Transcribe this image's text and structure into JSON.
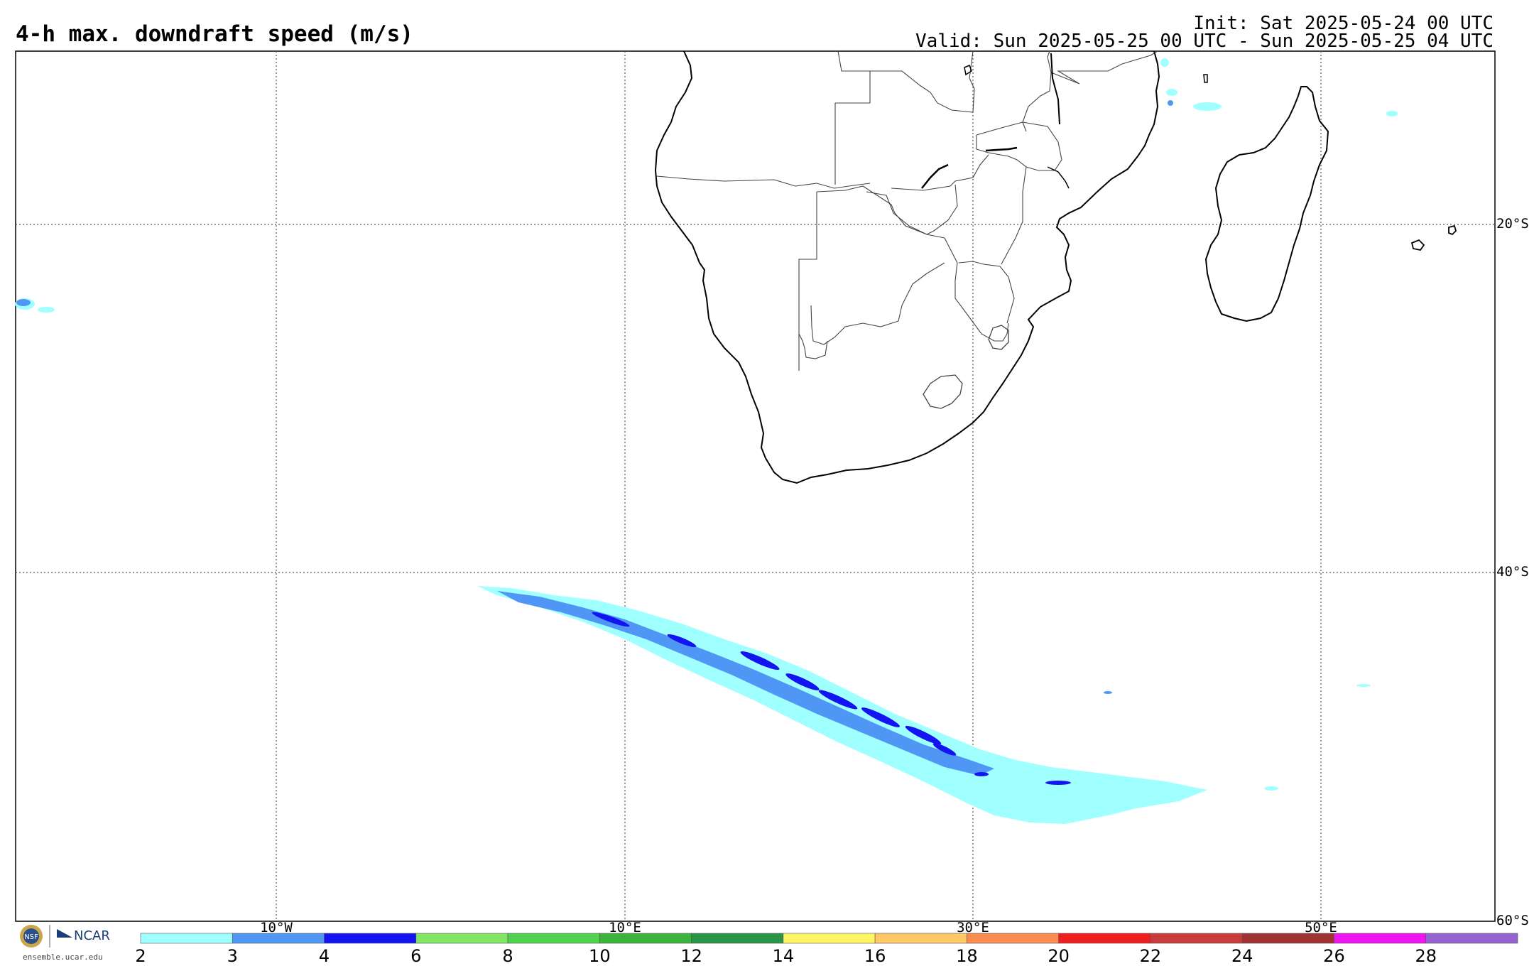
{
  "header": {
    "title": "4-h max. downdraft speed (m/s)",
    "init": "Init: Sat 2025-05-24 00 UTC",
    "valid": "Valid: Sun 2025-05-25 00 UTC - Sun 2025-05-25 04 UTC"
  },
  "map": {
    "lat_labels": [
      "20°S",
      "40°S",
      "60°S"
    ],
    "lon_labels": [
      "10°W",
      "10°E",
      "30°E",
      "50°E"
    ]
  },
  "colorbar": {
    "labels": [
      "2",
      "3",
      "4",
      "6",
      "8",
      "10",
      "12",
      "14",
      "16",
      "18",
      "20",
      "22",
      "24",
      "26",
      "28"
    ],
    "colors": [
      "#a0ffff",
      "#5096f5",
      "#1414f0",
      "#82e664",
      "#50d250",
      "#3cb43c",
      "#289646",
      "#fff564",
      "#ffc864",
      "#fa8c50",
      "#f01e1e",
      "#c83c3c",
      "#a03232",
      "#f014f0",
      "#9664d2"
    ]
  },
  "footer": {
    "logo_text": "ensemble.ucar.edu",
    "ncar_text": "NCAR"
  }
}
